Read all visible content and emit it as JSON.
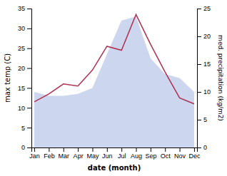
{
  "chart_data": {
    "type": "line",
    "categories": [
      "Jan",
      "Feb",
      "Mar",
      "Apr",
      "May",
      "Jun",
      "Jul",
      "Aug",
      "Sep",
      "Oct",
      "Nov",
      "Dec"
    ],
    "series": [
      {
        "type": "area",
        "color": "#b8c4e8",
        "values": [
          14.0,
          13.0,
          13.0,
          13.5,
          15.0,
          23.5,
          32.0,
          33.0,
          22.5,
          18.5,
          17.5,
          14.0
        ]
      },
      {
        "type": "line",
        "color": "#b03050",
        "values": [
          11.5,
          13.5,
          16.0,
          15.5,
          19.5,
          25.5,
          24.5,
          33.5,
          26.0,
          19.0,
          12.5,
          11.0
        ]
      }
    ],
    "xlabel": "date (month)",
    "ylabel": "max temp (C)",
    "y2label": "med. precipitation (kg/m2)",
    "ylim": [
      0,
      35
    ],
    "yticks": [
      0,
      5,
      10,
      15,
      20,
      25,
      30,
      35
    ],
    "y2lim": [
      0,
      25
    ],
    "y2ticks": [
      0,
      5,
      10,
      15,
      20,
      25
    ],
    "grid": false
  }
}
